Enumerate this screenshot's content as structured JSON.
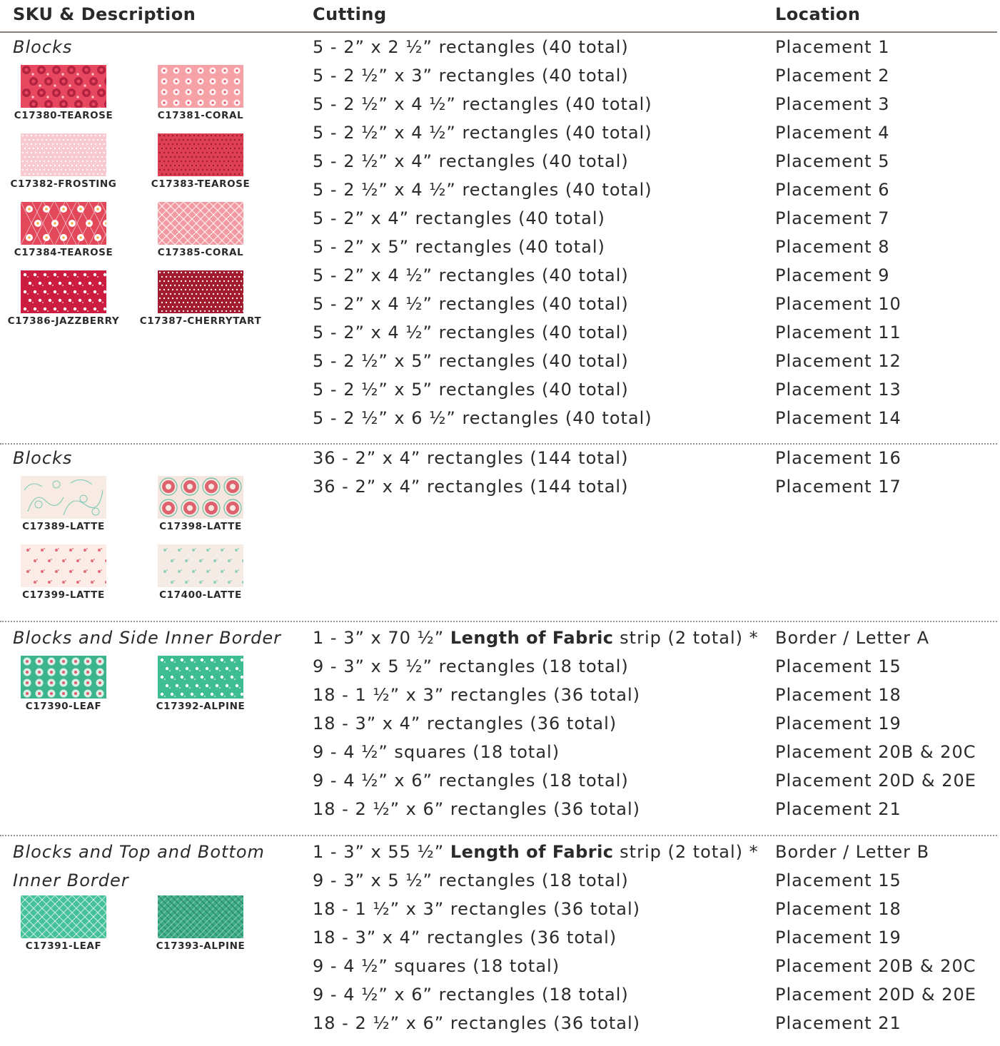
{
  "headers": {
    "sku": "SKU & Description",
    "cutting": "Cutting",
    "location": "Location"
  },
  "sections": [
    {
      "title": [
        "Blocks"
      ],
      "swatches": [
        {
          "sku": "C17380-TEAROSE",
          "pattern": "roses",
          "bg": "#e8485f",
          "fg": "#b32340"
        },
        {
          "sku": "C17381-CORAL",
          "pattern": "flowergrid",
          "bg": "#f6a1a6",
          "fg": "#ffffff"
        },
        {
          "sku": "C17382-FROSTING",
          "pattern": "dots",
          "bg": "#f9c9d0",
          "fg": "#ffffff"
        },
        {
          "sku": "C17383-TEAROSE",
          "pattern": "dots",
          "bg": "#df3f52",
          "fg": "#8e1c2e"
        },
        {
          "sku": "C17384-TEAROSE",
          "pattern": "plaidflower",
          "bg": "#e2475a",
          "fg": "#ffffff"
        },
        {
          "sku": "C17385-CORAL",
          "pattern": "diamond",
          "bg": "#f19aa2",
          "fg": "#ffffff"
        },
        {
          "sku": "C17386-JAZZBERRY",
          "pattern": "ditsy",
          "bg": "#cc1c3f",
          "fg": "#ffffff"
        },
        {
          "sku": "C17387-CHERRYTART",
          "pattern": "dots",
          "bg": "#a11a2d",
          "fg": "#ffffff"
        }
      ],
      "rows": [
        {
          "cut": "5 - 2” x 2 ½” rectangles (40 total)",
          "loc": "Placement 1"
        },
        {
          "cut": "5 - 2 ½” x 3” rectangles (40 total)",
          "loc": "Placement 2"
        },
        {
          "cut": "5 - 2 ½” x 4 ½” rectangles (40 total)",
          "loc": "Placement 3"
        },
        {
          "cut": "5 - 2 ½” x 4 ½” rectangles (40 total)",
          "loc": "Placement 4"
        },
        {
          "cut": "5 - 2 ½” x 4” rectangles (40 total)",
          "loc": "Placement 5"
        },
        {
          "cut": "5 - 2 ½” x 4 ½” rectangles (40 total)",
          "loc": "Placement 6"
        },
        {
          "cut": "5 - 2” x 4” rectangles (40 total)",
          "loc": "Placement 7"
        },
        {
          "cut": "5 - 2” x 5” rectangles (40 total)",
          "loc": "Placement 8"
        },
        {
          "cut": "5 - 2” x 4 ½” rectangles (40 total)",
          "loc": "Placement 9"
        },
        {
          "cut": "5 - 2” x 4 ½” rectangles (40 total)",
          "loc": "Placement 10"
        },
        {
          "cut": "5 - 2” x 4 ½” rectangles (40 total)",
          "loc": "Placement 11"
        },
        {
          "cut": "5 - 2 ½” x 5” rectangles (40 total)",
          "loc": "Placement 12"
        },
        {
          "cut": "5 - 2 ½” x 5” rectangles (40 total)",
          "loc": "Placement 13"
        },
        {
          "cut": "5 - 2 ½” x 6 ½” rectangles (40 total)",
          "loc": "Placement 14"
        }
      ]
    },
    {
      "title": [
        "Blocks"
      ],
      "swatches": [
        {
          "sku": "C17389-LATTE",
          "pattern": "toile",
          "bg": "#f7ebe3",
          "fg": "#7fcab4"
        },
        {
          "sku": "C17398-LATTE",
          "pattern": "medallion",
          "bg": "#f5e6df",
          "fg": "#d94a5a"
        },
        {
          "sku": "C17399-LATTE",
          "pattern": "sparse",
          "bg": "#fbece8",
          "fg": "#e36b77"
        },
        {
          "sku": "C17400-LATTE",
          "pattern": "sparse",
          "bg": "#f4ece4",
          "fg": "#8fd0bb"
        }
      ],
      "rows": [
        {
          "cut": "36 - 2” x 4” rectangles (144 total)",
          "loc": "Placement 16"
        },
        {
          "cut": "36 - 2” x 4” rectangles (144 total)",
          "loc": "Placement 17"
        }
      ]
    },
    {
      "title": [
        "Blocks and Side Inner Border"
      ],
      "swatches": [
        {
          "sku": "C17390-LEAF",
          "pattern": "floweregg",
          "bg": "#3cb48d",
          "fg": "#e9f6f0"
        },
        {
          "sku": "C17392-ALPINE",
          "pattern": "ditsy",
          "bg": "#3fbd92",
          "fg": "#ffffff"
        }
      ],
      "rows": [
        {
          "cut_pre": "1 - 3” x 70 ½” ",
          "cut_bold": "Length of Fabric",
          "cut_post": " strip (2 total) *",
          "loc": "Border / Letter A"
        },
        {
          "cut": "9 - 3” x 5 ½” rectangles (18 total)",
          "loc": "Placement 15"
        },
        {
          "cut": "18 - 1 ½” x 3” rectangles (36 total)",
          "loc": "Placement 18"
        },
        {
          "cut": "18 - 3” x 4” rectangles (36 total)",
          "loc": "Placement 19"
        },
        {
          "cut": "9 - 4 ½” squares (18 total)",
          "loc": "Placement 20B & 20C"
        },
        {
          "cut": "9 - 4 ½” x 6” rectangles (18 total)",
          "loc": "Placement 20D & 20E"
        },
        {
          "cut": "18 - 2 ½” x 6” rectangles (36 total)",
          "loc": "Placement 21"
        }
      ]
    },
    {
      "title": [
        "Blocks and Top and Bottom",
        "Inner Border"
      ],
      "swatches": [
        {
          "sku": "C17391-LEAF",
          "pattern": "diamond",
          "bg": "#44c09a",
          "fg": "#d9f3ea"
        },
        {
          "sku": "C17393-ALPINE",
          "pattern": "plaid",
          "bg": "#3fae88",
          "fg": "#1f7b5e"
        }
      ],
      "rows": [
        {
          "cut_pre": "1 - 3” x 55 ½” ",
          "cut_bold": "Length of Fabric",
          "cut_post": " strip (2 total) *",
          "loc": "Border / Letter B"
        },
        {
          "cut": "9 - 3” x 5 ½” rectangles (18 total)",
          "loc": "Placement 15"
        },
        {
          "cut": "18 - 1 ½” x 3” rectangles (36 total)",
          "loc": "Placement 18"
        },
        {
          "cut": "18 - 3” x 4” rectangles (36 total)",
          "loc": "Placement 19"
        },
        {
          "cut": "9 - 4 ½” squares (18 total)",
          "loc": "Placement 20B & 20C"
        },
        {
          "cut": "9 - 4 ½” x 6” rectangles (18 total)",
          "loc": "Placement 20D & 20E"
        },
        {
          "cut": "18 - 2 ½” x 6” rectangles (36 total)",
          "loc": "Placement 21"
        }
      ]
    }
  ]
}
